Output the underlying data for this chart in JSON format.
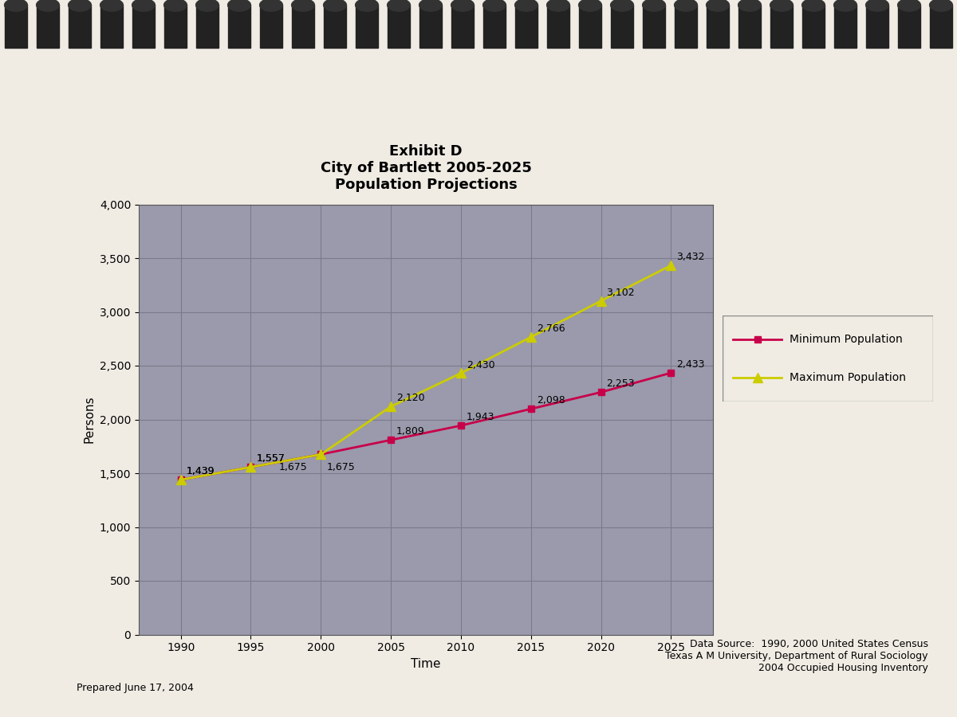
{
  "title": "Exhibit D\nCity of Bartlett 2005-2025\nPopulation Projections",
  "xlabel": "Time",
  "ylabel": "Persons",
  "years": [
    1990,
    1995,
    2000,
    2005,
    2010,
    2015,
    2020,
    2025
  ],
  "min_population": [
    1439,
    1557,
    1675,
    1809,
    1943,
    2098,
    2253,
    2433
  ],
  "max_population": [
    1439,
    1557,
    1675,
    2120,
    2430,
    2766,
    3102,
    3432
  ],
  "min_color": "#c8004a",
  "max_color": "#cccc00",
  "min_label": "Minimum Population",
  "max_label": "Maximum Population",
  "ylim": [
    0,
    4000
  ],
  "yticks": [
    0,
    500,
    1000,
    1500,
    2000,
    2500,
    3000,
    3500,
    4000
  ],
  "xticks": [
    1990,
    1995,
    2000,
    2005,
    2010,
    2015,
    2020,
    2025
  ],
  "plot_bg_color": "#9a9aac",
  "fig_bg_color": "#f0ece4",
  "grid_color": "#7a7a8a",
  "data_source": "Data Source:  1990, 2000 United States Census\nTexas A M University, Department of Rural Sociology\n2004 Occupied Housing Inventory",
  "prepared": "Prepared June 17, 2004",
  "title_fontsize": 13,
  "axis_label_fontsize": 11,
  "tick_fontsize": 10,
  "data_label_fontsize": 9,
  "legend_fontsize": 10,
  "min_label_offsets_x": [
    5,
    5,
    5,
    5,
    5,
    5,
    5,
    5
  ],
  "min_label_offsets_y": [
    5,
    5,
    -15,
    5,
    5,
    5,
    5,
    5
  ],
  "max_label_offsets_x": [
    5,
    5,
    -35,
    5,
    5,
    5,
    5,
    5
  ],
  "max_label_offsets_y": [
    5,
    5,
    -15,
    5,
    5,
    5,
    5,
    5
  ]
}
